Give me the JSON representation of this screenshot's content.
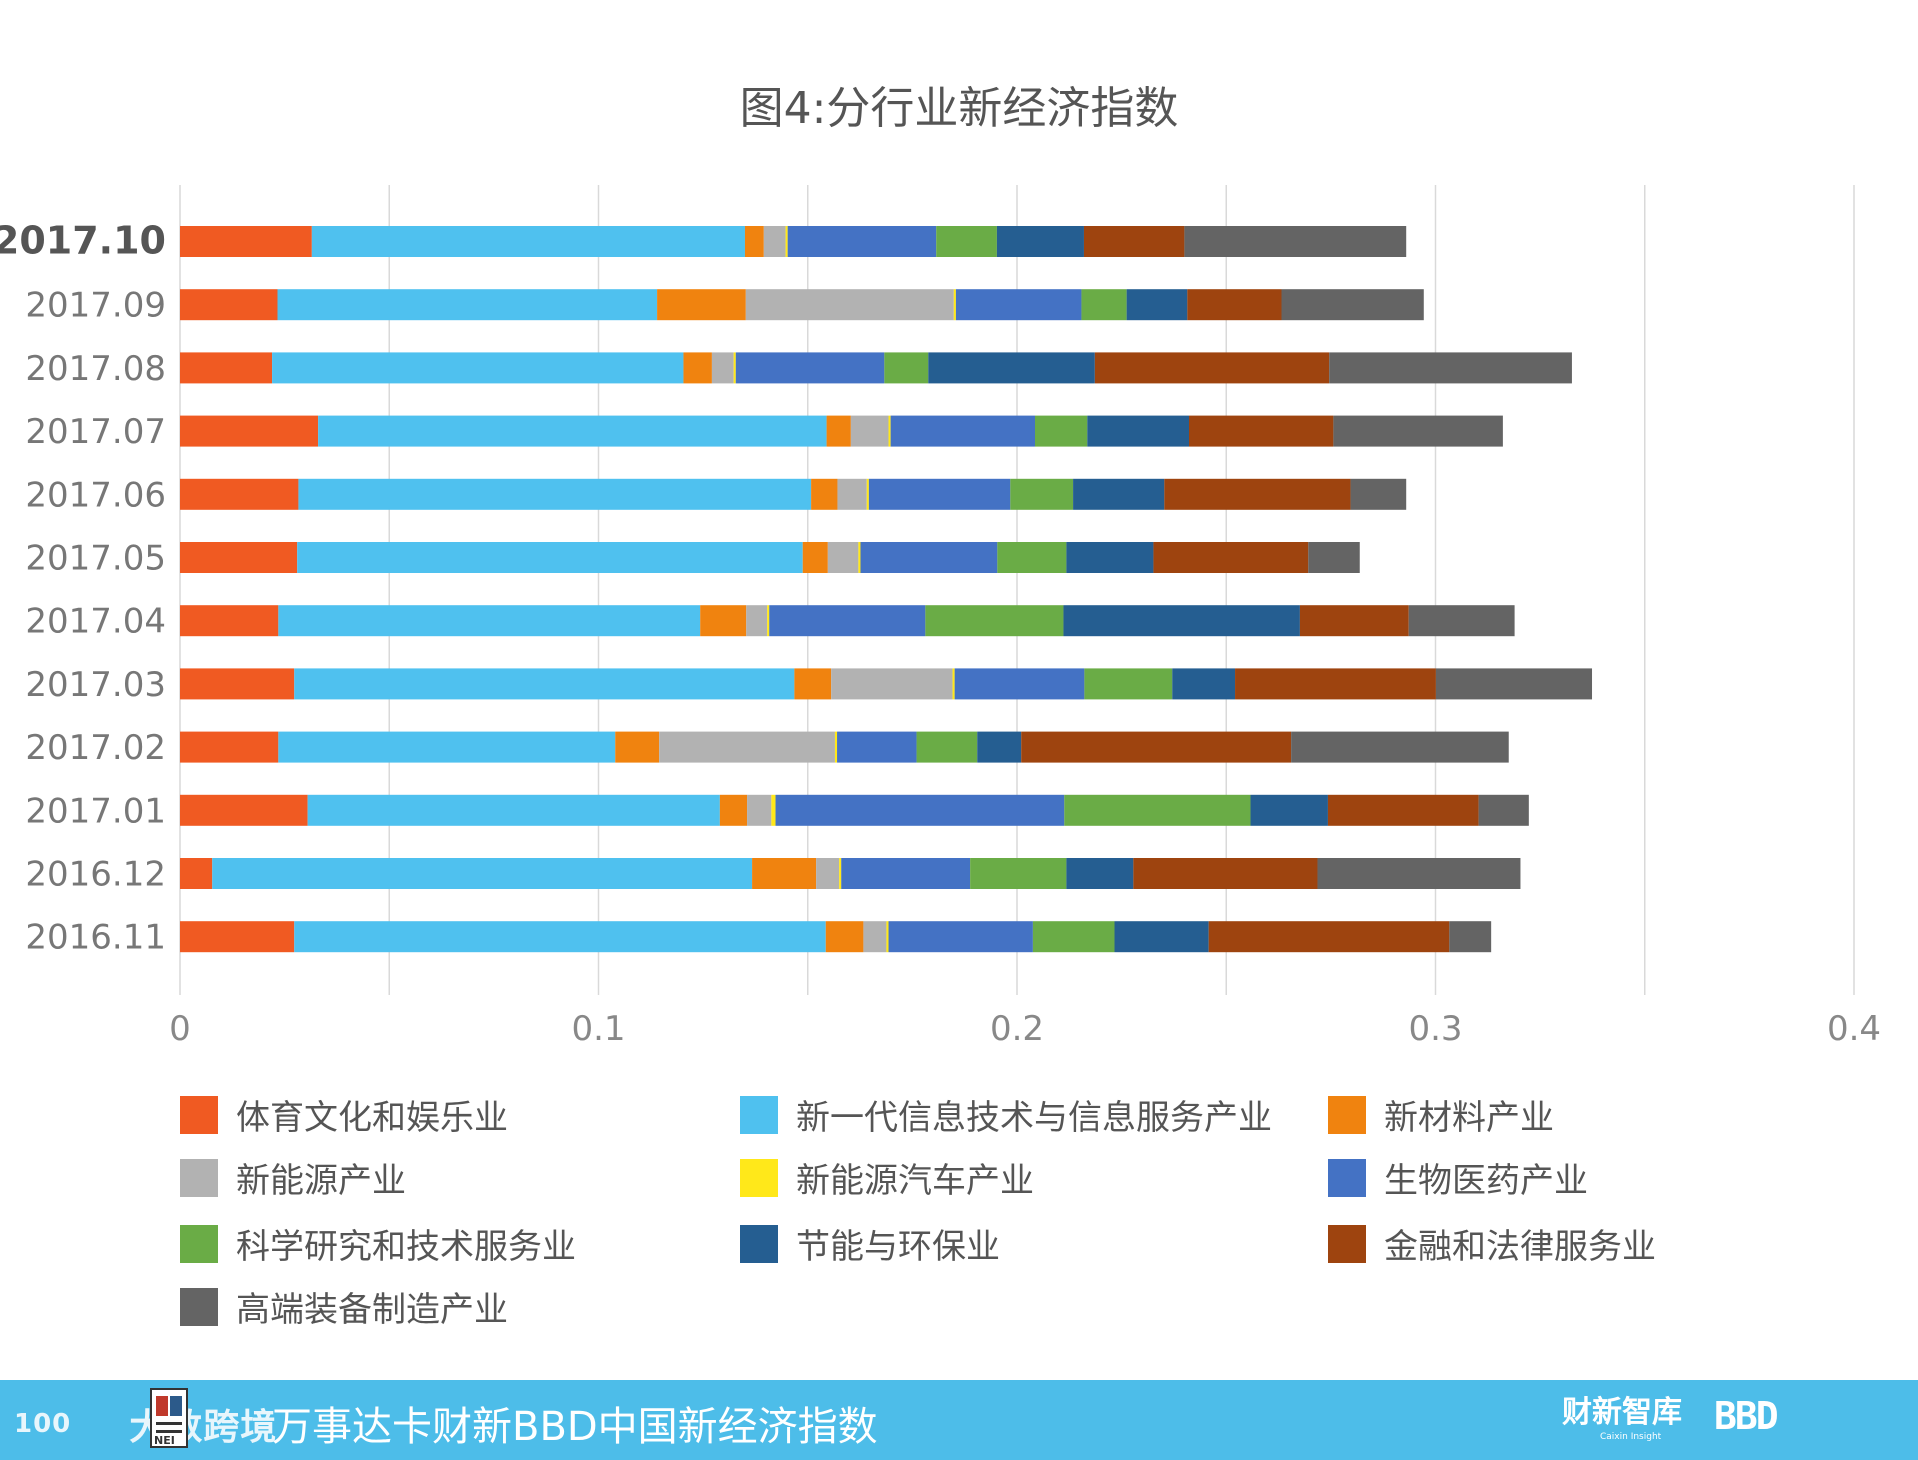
{
  "chart_data": {
    "type": "bar",
    "orientation": "horizontal",
    "stacked": true,
    "title": "图4:分行业新经济指数",
    "categories": [
      "2017.10",
      "2017.09",
      "2017.08",
      "2017.07",
      "2017.06",
      "2017.05",
      "2017.04",
      "2017.03",
      "2017.02",
      "2017.01",
      "2016.12",
      "2016.11"
    ],
    "xlim": [
      0,
      0.4
    ],
    "x_ticks": [
      "0",
      "0.1",
      "0.2",
      "0.3",
      "0.4"
    ],
    "x_tick_values": [
      0,
      0.1,
      0.2,
      0.3,
      0.4
    ],
    "grid": true,
    "legend_position": "bottom",
    "series": [
      {
        "name": "体育文化和娱乐业",
        "color": "#f05a22",
        "values": [
          0.0315,
          0.0233,
          0.022,
          0.033,
          0.0283,
          0.028,
          0.0235,
          0.0273,
          0.0235,
          0.0305,
          0.0077,
          0.0273
        ]
      },
      {
        "name": "新一代信息技术与信息服务产业",
        "color": "#4fc1ef",
        "values": [
          0.1035,
          0.0907,
          0.0983,
          0.1215,
          0.1225,
          0.1208,
          0.1008,
          0.1195,
          0.0805,
          0.0985,
          0.129,
          0.127
        ]
      },
      {
        "name": "新材料产业",
        "color": "#f0830f",
        "values": [
          0.0045,
          0.0212,
          0.0068,
          0.0058,
          0.0063,
          0.006,
          0.011,
          0.0088,
          0.0105,
          0.0065,
          0.0153,
          0.009
        ]
      },
      {
        "name": "新能源产业",
        "color": "#b2b2b2",
        "values": [
          0.0052,
          0.0497,
          0.0052,
          0.009,
          0.007,
          0.0073,
          0.005,
          0.029,
          0.042,
          0.0058,
          0.0055,
          0.0055
        ]
      },
      {
        "name": "新能源汽车产业",
        "color": "#ffe81a",
        "values": [
          0.0005,
          0.0005,
          0.0005,
          0.0005,
          0.0005,
          0.0005,
          0.0005,
          0.0005,
          0.0005,
          0.001,
          0.0005,
          0.0005
        ]
      },
      {
        "name": "生物医药产业",
        "color": "#4472c4",
        "values": [
          0.0355,
          0.03,
          0.0355,
          0.0345,
          0.0338,
          0.0327,
          0.0373,
          0.031,
          0.019,
          0.069,
          0.0308,
          0.0345
        ]
      },
      {
        "name": "科学研究和技术服务业",
        "color": "#6aac46",
        "values": [
          0.0145,
          0.0108,
          0.0105,
          0.0125,
          0.015,
          0.0165,
          0.033,
          0.021,
          0.0145,
          0.0445,
          0.023,
          0.0195
        ]
      },
      {
        "name": "节能与环保业",
        "color": "#255e91",
        "values": [
          0.0208,
          0.0145,
          0.0398,
          0.0243,
          0.0218,
          0.0208,
          0.0565,
          0.015,
          0.0105,
          0.0185,
          0.016,
          0.0225
        ]
      },
      {
        "name": "金融和法律服务业",
        "color": "#9e440f",
        "values": [
          0.024,
          0.0225,
          0.056,
          0.0345,
          0.0445,
          0.037,
          0.026,
          0.048,
          0.0645,
          0.036,
          0.044,
          0.0575
        ]
      },
      {
        "name": "高端装备制造产业",
        "color": "#646464",
        "values": [
          0.053,
          0.034,
          0.058,
          0.0405,
          0.0133,
          0.0123,
          0.0253,
          0.0373,
          0.052,
          0.012,
          0.0485,
          0.01
        ]
      }
    ]
  },
  "footer": {
    "logo_left": "大数跨境",
    "logo_prefix": "100",
    "badge_text": "NEI",
    "title": "万事达卡财新BBD中国新经济指数",
    "caixin": "财新智库",
    "caixin_sub": "Caixin Insight",
    "bbd": "BBD"
  }
}
